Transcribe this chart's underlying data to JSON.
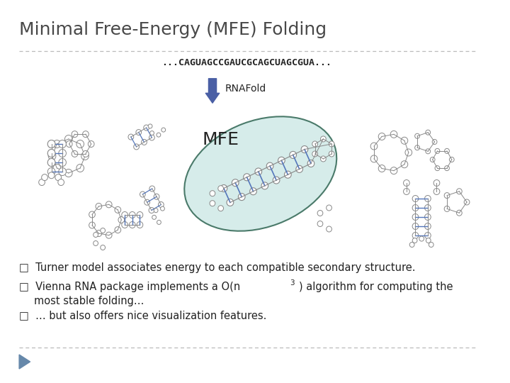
{
  "title": "Minimal Free-Energy (MFE) Folding",
  "sequence": "...CAGUAGCCGAUCGCAGCUAGCGUA...",
  "rnafold_label": "RNAFold",
  "mfe_label": "MFE",
  "bullet1": "Turner model associates energy to each compatible secondary structure.",
  "bullet2_line1": "Vienna RNA package implements a O(n³) algorithm for computing the",
  "bullet2_line2": "   most stable folding…",
  "bullet3": "… but also offers nice visualization features.",
  "bg_color": "#ffffff",
  "title_color": "#484848",
  "text_color": "#222222",
  "sequence_color": "#222222",
  "arrow_color": "#4a5fa5",
  "ellipse_fill": "#d6ecea",
  "ellipse_edge": "#4a7a6a",
  "dashed_line_color": "#bbbbbb",
  "rna_line_color": "#888888",
  "rna_bp_color": "#5577bb",
  "footer_triangle_color": "#6688aa",
  "title_fontsize": 18,
  "seq_fontsize": 9.5,
  "rnafold_fontsize": 10,
  "mfe_fontsize": 18,
  "bullet_fontsize": 10.5
}
